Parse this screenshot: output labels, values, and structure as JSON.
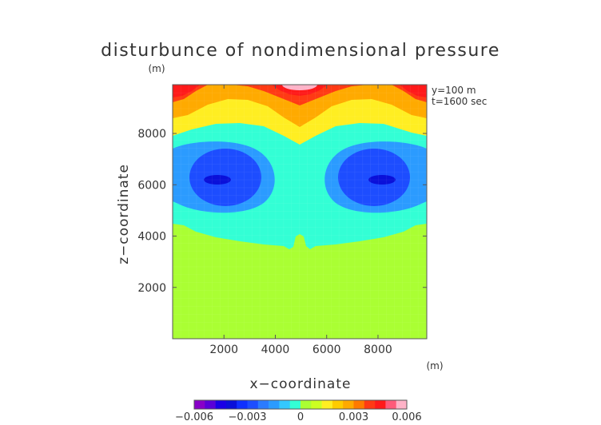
{
  "chart_data": {
    "type": "heatmap",
    "title": "disturbunce of nondimensional pressure",
    "xlabel": "x−coordinate",
    "ylabel": "z−coordinate",
    "x_unit": "(m)",
    "y_unit": "(m)",
    "xlim": [
      0,
      9900
    ],
    "ylim": [
      0,
      9900
    ],
    "xticks": [
      "2000",
      "4000",
      "6000",
      "8000"
    ],
    "xtick_values": [
      2000,
      4000,
      6000,
      8000
    ],
    "yticks": [
      "2000",
      "4000",
      "6000",
      "8000"
    ],
    "ytick_values": [
      2000,
      4000,
      6000,
      8000
    ],
    "annotations": [
      "y=100  m",
      "t=1600  sec"
    ],
    "colorbar": {
      "ticks": [
        "−0.006",
        "−0.003",
        "0",
        "0.003",
        "0.006"
      ],
      "tick_values": [
        -0.006,
        -0.003,
        0,
        0.003,
        0.006
      ],
      "range": [
        -0.006,
        0.006
      ],
      "bins": 20
    },
    "regions": [
      {
        "name": "bottom-layer",
        "level": 0.0,
        "color": "#aaff33"
      },
      {
        "name": "middle-band",
        "level": -0.0009,
        "color": "#33ffd5"
      },
      {
        "name": "left-vortex-outer",
        "level": -0.0024,
        "color": "#2b9bff"
      },
      {
        "name": "left-vortex-inner",
        "level": -0.0036,
        "color": "#1d4dff"
      },
      {
        "name": "left-vortex-core",
        "level": -0.0048,
        "color": "#0a10d9"
      },
      {
        "name": "right-vortex-outer",
        "level": -0.0024,
        "color": "#2b9bff"
      },
      {
        "name": "right-vortex-inner",
        "level": -0.0036,
        "color": "#1d4dff"
      },
      {
        "name": "right-vortex-core",
        "level": -0.0048,
        "color": "#0a10d9"
      },
      {
        "name": "upper-band-yellow",
        "level": 0.0012,
        "color": "#ffee22"
      },
      {
        "name": "upper-band-orange",
        "level": 0.0024,
        "color": "#ffaa00"
      },
      {
        "name": "upper-band-red",
        "level": 0.0036,
        "color": "#ff3a14"
      },
      {
        "name": "top-peak",
        "level": 0.006,
        "color": "#ffb3c8"
      }
    ]
  },
  "colors": {
    "background": "#ffffff",
    "text": "#333333",
    "colorbar": [
      "#8800c8",
      "#5a00d8",
      "#1a00e6",
      "#0a10d9",
      "#1030ff",
      "#1d4dff",
      "#2b7bff",
      "#2b9bff",
      "#33c8ff",
      "#33ffd5",
      "#aaff33",
      "#ccff22",
      "#ffee22",
      "#ffcc00",
      "#ffaa00",
      "#ff7a00",
      "#ff3a14",
      "#ff1a1a",
      "#ff5a7a",
      "#ffb3c8"
    ]
  }
}
